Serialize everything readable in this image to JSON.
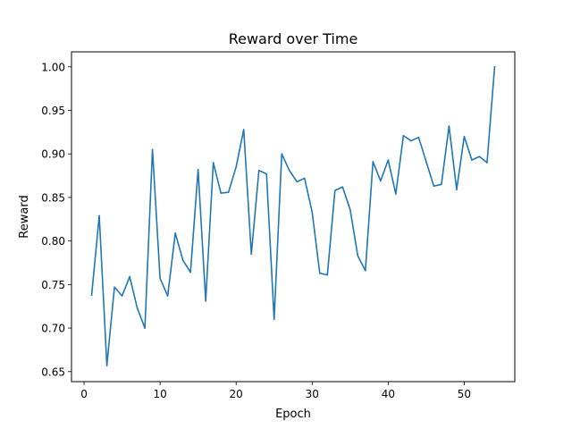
{
  "chart_data": {
    "type": "line",
    "title": "Reward over Time",
    "xlabel": "Epoch",
    "ylabel": "Reward",
    "xlim": [
      -1.65,
      56.65
    ],
    "ylim": [
      0.6385,
      1.0172
    ],
    "grid": false,
    "x_ticks": [
      0,
      10,
      20,
      30,
      40,
      50
    ],
    "y_ticks": [
      0.65,
      0.7,
      0.75,
      0.8,
      0.85,
      0.9,
      0.95,
      1.0
    ],
    "y_tick_labels": [
      "0.65",
      "0.70",
      "0.75",
      "0.80",
      "0.85",
      "0.90",
      "0.95",
      "1.00"
    ],
    "series": [
      {
        "color": "#1f77b4",
        "x": [
          1,
          2,
          3,
          4,
          5,
          6,
          7,
          8,
          9,
          10,
          11,
          12,
          13,
          14,
          15,
          16,
          17,
          18,
          19,
          20,
          21,
          22,
          23,
          24,
          25,
          26,
          27,
          28,
          29,
          30,
          31,
          32,
          33,
          34,
          35,
          36,
          37,
          38,
          39,
          40,
          41,
          42,
          43,
          44,
          45,
          46,
          47,
          48,
          49,
          50,
          51,
          52,
          53,
          54
        ],
        "values": [
          0.738,
          0.829,
          0.657,
          0.747,
          0.737,
          0.759,
          0.723,
          0.7,
          0.905,
          0.757,
          0.737,
          0.809,
          0.778,
          0.764,
          0.882,
          0.731,
          0.89,
          0.855,
          0.856,
          0.885,
          0.928,
          0.785,
          0.881,
          0.877,
          0.71,
          0.9,
          0.881,
          0.868,
          0.872,
          0.833,
          0.763,
          0.761,
          0.858,
          0.862,
          0.836,
          0.783,
          0.766,
          0.891,
          0.869,
          0.893,
          0.854,
          0.921,
          0.915,
          0.919,
          0.891,
          0.863,
          0.865,
          0.932,
          0.859,
          0.92,
          0.893,
          0.897,
          0.89,
          1.0
        ]
      }
    ]
  }
}
